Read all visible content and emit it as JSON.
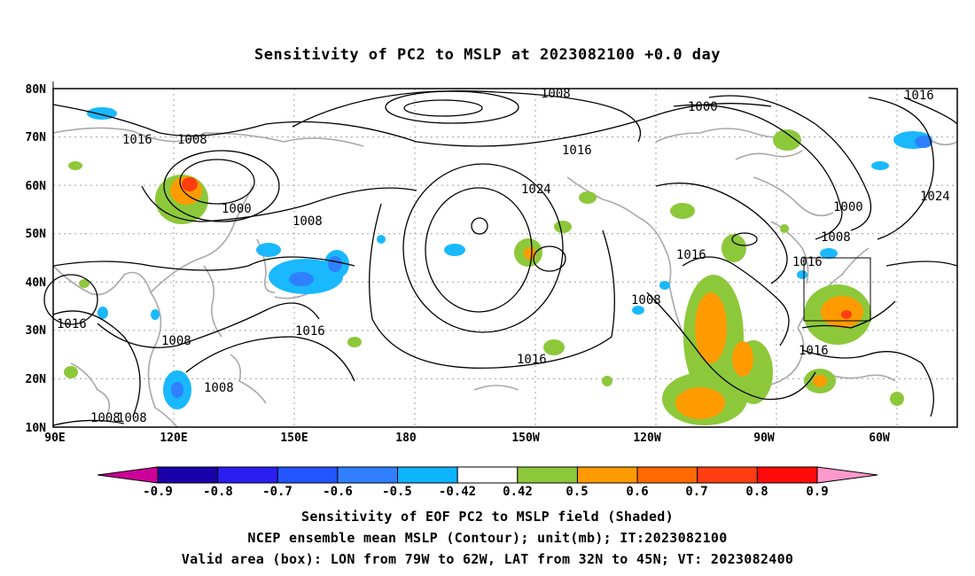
{
  "title": "Sensitivity of PC2 to MSLP at 2023082100 +0.0 day",
  "axes": {
    "lon_labels": [
      "90E",
      "120E",
      "150E",
      "180",
      "150W",
      "120W",
      "90W",
      "60W"
    ],
    "lat_labels": [
      "80N",
      "70N",
      "60N",
      "50N",
      "40N",
      "30N",
      "20N",
      "10N"
    ]
  },
  "contour_labels": [
    "1016",
    "1008",
    "1000",
    "1008",
    "1008",
    "1016",
    "1008",
    "1008",
    "1016",
    "1024",
    "1016",
    "1016",
    "1008",
    "1016",
    "1000",
    "1000",
    "1016",
    "1024",
    "1008",
    "1016",
    "1016",
    "1008",
    "1008"
  ],
  "colorbar": {
    "labels": [
      "-0.9",
      "-0.8",
      "-0.7",
      "-0.6",
      "-0.5",
      "-0.42",
      "0.42",
      "0.5",
      "0.6",
      "0.7",
      "0.8",
      "0.9"
    ],
    "colors": [
      "#1a00a8",
      "#2a1ef0",
      "#2255ff",
      "#2f7fff",
      "#0fb4ff",
      "#ffffff",
      "#8dc83a",
      "#ff9a00",
      "#ff6a00",
      "#ff3d10",
      "#ff0a0a"
    ],
    "end_low_color": "#cc0099",
    "end_high_color": "#ff99cc"
  },
  "captions": [
    "Sensitivity of EOF PC2 to MSLP field (Shaded)",
    "NCEP ensemble mean MSLP (Contour); unit(mb); IT:2023082100",
    "Valid area (box): LON from 79W to 62W, LAT from 32N to 45N; VT: 2023082400"
  ]
}
